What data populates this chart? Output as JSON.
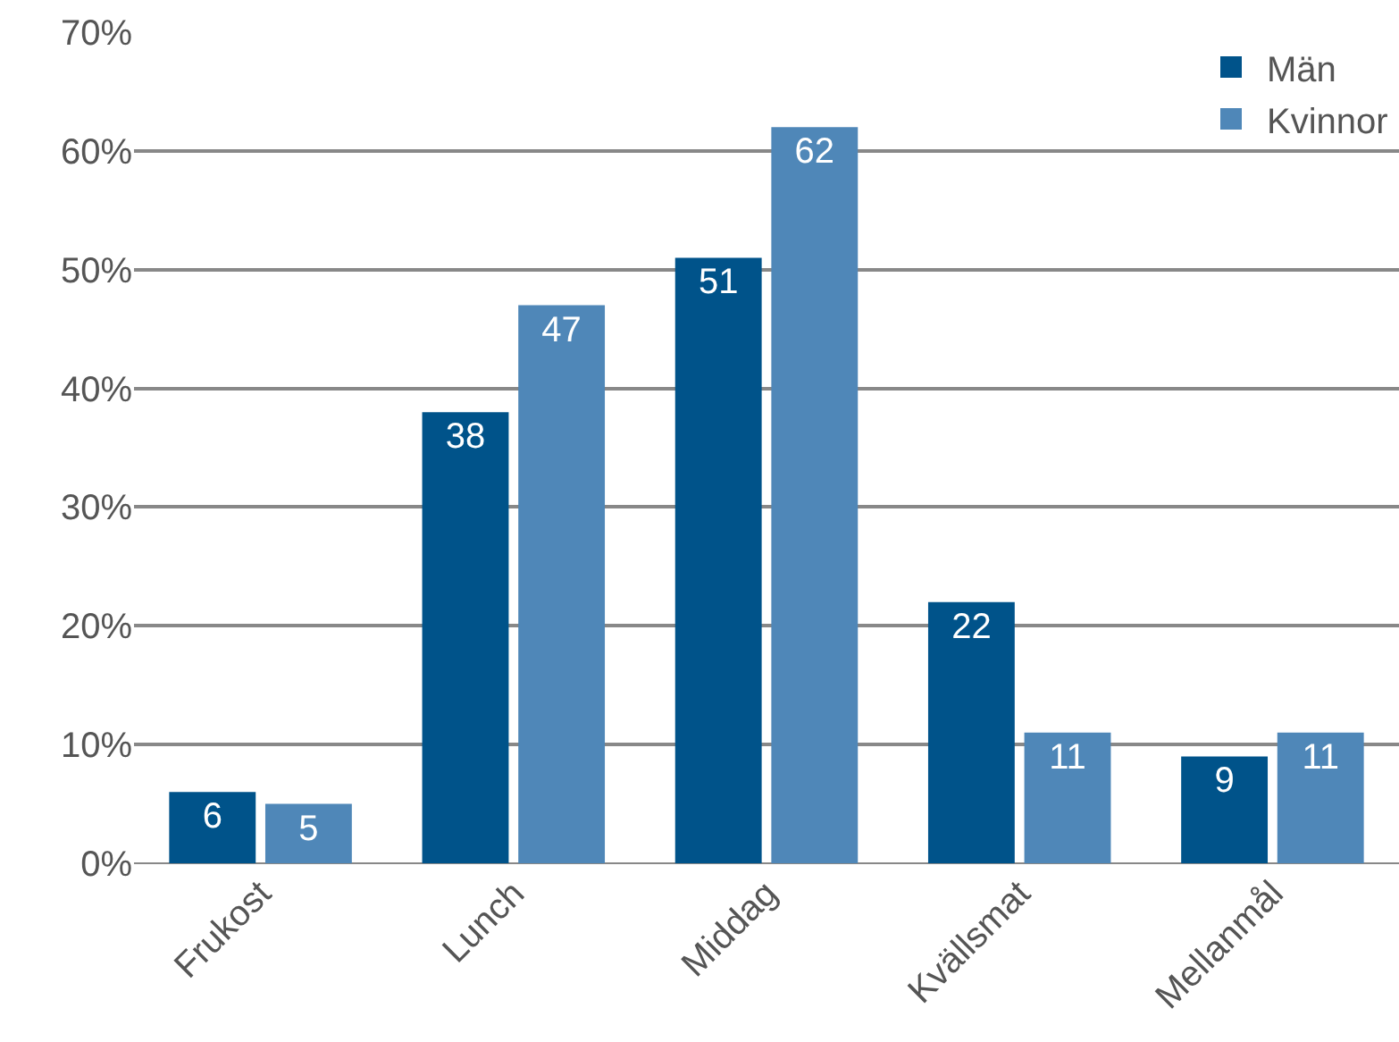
{
  "chart_data": {
    "type": "bar",
    "categories": [
      "Frukost",
      "Lunch",
      "Middag",
      "Kvällsmat",
      "Mellanmål"
    ],
    "series": [
      {
        "name": "Män",
        "color": "#00538a",
        "values": [
          6,
          38,
          51,
          22,
          9
        ]
      },
      {
        "name": "Kvinnor",
        "color": "#4f87b8",
        "values": [
          5,
          47,
          62,
          11,
          11
        ]
      }
    ],
    "ylim": [
      0,
      70
    ],
    "yticks": [
      {
        "value": 0,
        "label": "0%"
      },
      {
        "value": 10,
        "label": "10%"
      },
      {
        "value": 20,
        "label": "20%"
      },
      {
        "value": 30,
        "label": "30%"
      },
      {
        "value": 40,
        "label": "40%"
      },
      {
        "value": 50,
        "label": "50%"
      },
      {
        "value": 60,
        "label": "60%"
      },
      {
        "value": 70,
        "label": "70%"
      }
    ],
    "grid": "y",
    "legend": "top right",
    "data_labels": true
  }
}
